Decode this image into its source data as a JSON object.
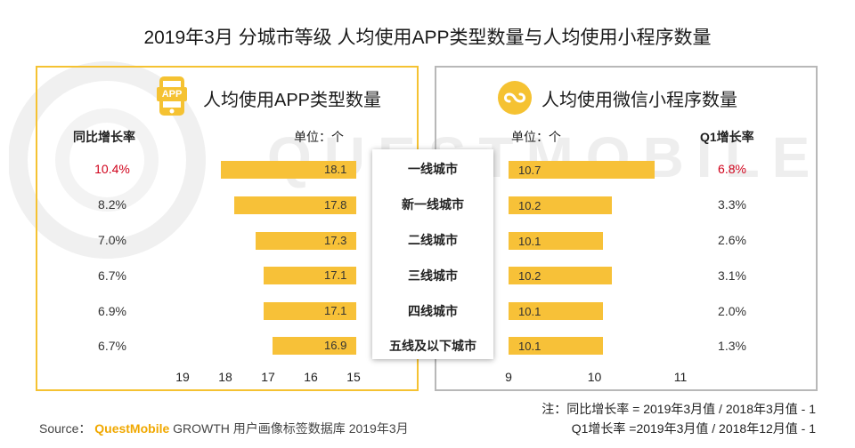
{
  "title": "2019年3月 分城市等级 人均使用APP类型数量与人均使用小程序数量",
  "watermark": "QUESTMOBILE",
  "left_panel": {
    "icon_text": "APP",
    "title": "人均使用APP类型数量",
    "growth_header": "同比增长率",
    "unit": "单位：个"
  },
  "right_panel": {
    "title": "人均使用微信小程序数量",
    "growth_header": "Q1增长率",
    "unit": "单位：个"
  },
  "colors": {
    "bar": "#f7c138",
    "accent": "#f5c232",
    "highlight": "#d0021b"
  },
  "chart_data": [
    {
      "type": "bar",
      "title": "人均使用APP类型数量",
      "orientation": "horizontal",
      "x_reversed": true,
      "categories": [
        "一线城市",
        "新一线城市",
        "二线城市",
        "三线城市",
        "四线城市",
        "五线及以下城市"
      ],
      "values": [
        18.1,
        17.8,
        17.3,
        17.1,
        17.1,
        16.9
      ],
      "yoy_growth": [
        "10.4%",
        "8.2%",
        "7.0%",
        "6.7%",
        "6.9%",
        "6.7%"
      ],
      "xlim": [
        19,
        15
      ],
      "xticks": [
        "19",
        "18",
        "17",
        "16",
        "15"
      ],
      "unit": "单位：个"
    },
    {
      "type": "bar",
      "title": "人均使用微信小程序数量",
      "orientation": "horizontal",
      "categories": [
        "一线城市",
        "新一线城市",
        "二线城市",
        "三线城市",
        "四线城市",
        "五线及以下城市"
      ],
      "values": [
        10.7,
        10.2,
        10.1,
        10.2,
        10.1,
        10.1
      ],
      "q1_growth": [
        "6.8%",
        "3.3%",
        "2.6%",
        "3.1%",
        "2.0%",
        "1.3%"
      ],
      "xlim": [
        9,
        11
      ],
      "xticks": [
        "9",
        "10",
        "11"
      ],
      "unit": "单位：个"
    }
  ],
  "footer": {
    "source_label": "Source：",
    "brand": "QuestMobile",
    "source_text": "GROWTH 用户画像标签数据库 2019年3月",
    "note1": "注：同比增长率 = 2019年3月值 / 2018年3月值 - 1",
    "note2": "Q1增长率 =2019年3月值 / 2018年12月值 - 1"
  }
}
